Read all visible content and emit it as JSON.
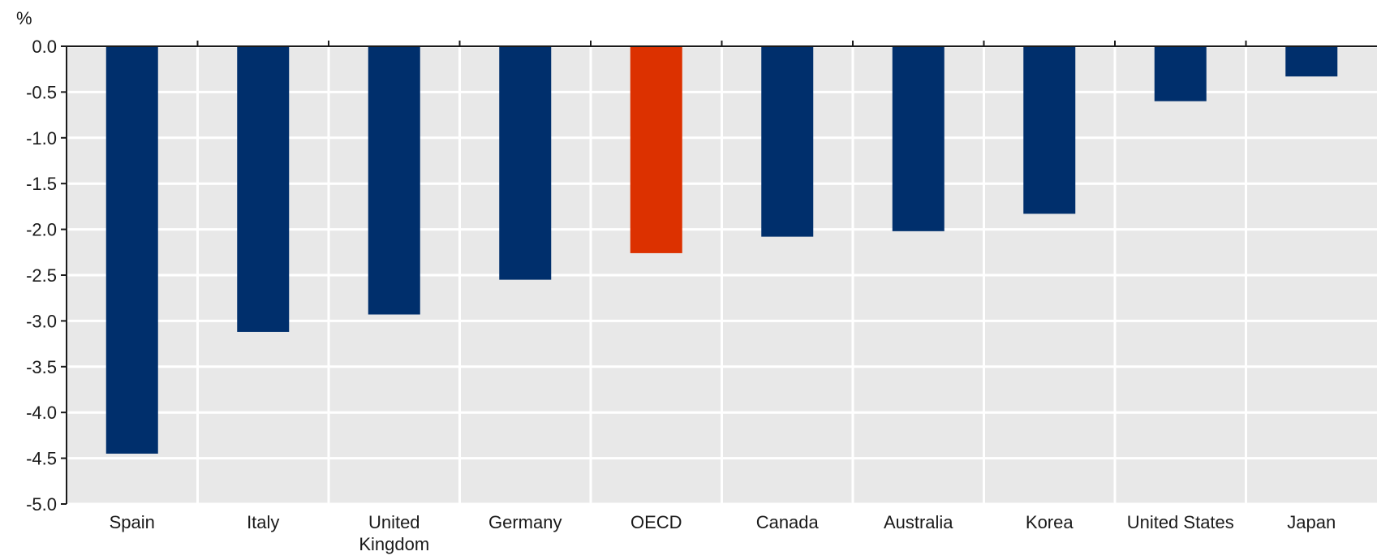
{
  "chart_data": {
    "type": "bar",
    "unit_label": "%",
    "categories": [
      [
        "Spain"
      ],
      [
        "Italy"
      ],
      [
        "United",
        "Kingdom"
      ],
      [
        "Germany"
      ],
      [
        "OECD"
      ],
      [
        "Canada"
      ],
      [
        "Australia"
      ],
      [
        "Korea"
      ],
      [
        "United States"
      ],
      [
        "Japan"
      ]
    ],
    "values": [
      -4.45,
      -3.12,
      -2.93,
      -2.55,
      -2.26,
      -2.08,
      -2.02,
      -1.83,
      -0.6,
      -0.33
    ],
    "highlight_category": "OECD",
    "ylim": [
      -5.0,
      0.0
    ],
    "yticks": [
      "0.0",
      "-0.5",
      "-1.0",
      "-1.5",
      "-2.0",
      "-2.5",
      "-3.0",
      "-3.5",
      "-4.0",
      "-4.5",
      "-5.0"
    ],
    "grid": true,
    "colors": {
      "bar": "#002f6c",
      "highlight": "#dc3100",
      "plot_background": "#e8e8e8",
      "grid": "#ffffff",
      "axis": "#1a1a1a"
    }
  }
}
